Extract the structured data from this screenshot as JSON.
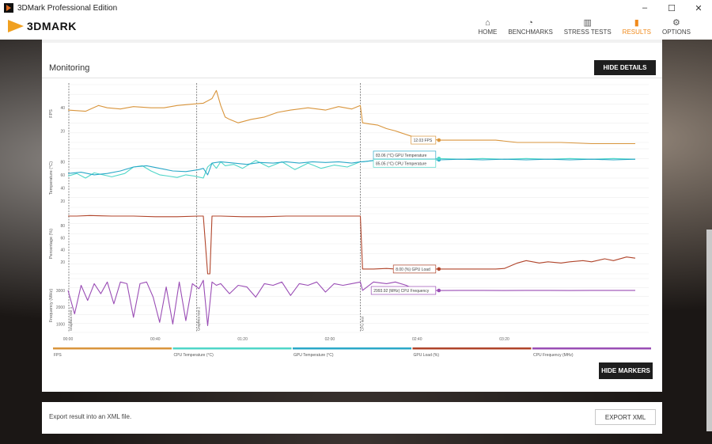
{
  "window": {
    "title": "3DMark Professional Edition",
    "controls": [
      "–",
      "☐",
      "✕"
    ]
  },
  "brand": {
    "logo_text": "3DMARK"
  },
  "nav": [
    {
      "label": "HOME",
      "icon": "home-icon",
      "glyph": "⌂"
    },
    {
      "label": "BENCHMARKS",
      "icon": "speedometer-icon",
      "glyph": "◔"
    },
    {
      "label": "STRESS TESTS",
      "icon": "bars-icon",
      "glyph": "▥"
    },
    {
      "label": "RESULTS",
      "icon": "results-icon",
      "glyph": "▮"
    },
    {
      "label": "OPTIONS",
      "icon": "gear-icon",
      "glyph": "⚙"
    }
  ],
  "monitoring": {
    "title": "Monitoring",
    "hide_details": "HIDE DETAILS",
    "hide_markers": "HIDE MARKERS"
  },
  "export": {
    "text": "Export result into an XML file.",
    "button": "EXPORT XML"
  },
  "colors": {
    "accent": "#f08a1c",
    "fps": "#d9953c",
    "cpu_temp": "#4fd6c8",
    "gpu_temp": "#2aa8c8",
    "gpu_load": "#b0442a",
    "cpu_freq": "#9a4db5"
  },
  "chart_data": {
    "type": "line",
    "x_ticks": [
      "00:00",
      "00:40",
      "01:20",
      "02:00",
      "02:40",
      "03:20"
    ],
    "markers": [
      "Graphics test 1",
      "Graphics test 2",
      "CPU test"
    ],
    "panels": [
      {
        "ylabel": "FPS",
        "yticks": [
          "40",
          "20"
        ],
        "ylim": [
          10,
          60
        ]
      },
      {
        "ylabel": "Temperature (°C)",
        "yticks": [
          "80",
          "60",
          "40",
          "20"
        ],
        "ylim": [
          10,
          100
        ]
      },
      {
        "ylabel": "Percentage (%)",
        "yticks": [
          "80",
          "60",
          "40",
          "20"
        ],
        "ylim": [
          0,
          100
        ]
      },
      {
        "ylabel": "Frequency (MHz)",
        "yticks": [
          "3000",
          "2000",
          "1000"
        ],
        "ylim": [
          500,
          3700
        ]
      }
    ],
    "tooltips": [
      {
        "text": "12.03 FPS",
        "panel": 0,
        "y": 12.03
      },
      {
        "text": "83.06 (°C) GPU Temperature",
        "panel": 1,
        "y": 83.06
      },
      {
        "text": "85.05 (°C) CPU Temperature",
        "panel": 1,
        "y": 85.05
      },
      {
        "text": "8.00 (%) GPU Load",
        "panel": 2,
        "y": 8
      },
      {
        "text": "2993.92 (MHz) CPU Frequency",
        "panel": 3,
        "y": 2993.92
      }
    ],
    "cursor_time": 170,
    "series": [
      {
        "name": "FPS",
        "panel": 0,
        "color": "#d9953c",
        "x": [
          0,
          8,
          14,
          18,
          24,
          30,
          38,
          44,
          50,
          56,
          62,
          66,
          68,
          70,
          72,
          74,
          78,
          84,
          90,
          96,
          102,
          110,
          118,
          124,
          130,
          134,
          135,
          138,
          142,
          146,
          150,
          158,
          166,
          170,
          176,
          184,
          196,
          206,
          218,
          226,
          240,
          250,
          260
        ],
        "y": [
          38,
          37,
          42,
          40,
          39,
          41,
          40,
          40,
          42,
          43,
          44,
          48,
          55,
          42,
          32,
          30,
          27,
          30,
          32,
          36,
          38,
          40,
          38,
          41,
          39,
          42,
          27,
          26,
          25,
          22,
          20,
          15,
          13,
          12,
          12,
          12,
          12,
          10,
          10,
          10,
          9,
          9,
          9
        ]
      },
      {
        "name": "CPU Temperature (°C)",
        "panel": 1,
        "color": "#4fd6c8",
        "x": [
          0,
          4,
          8,
          12,
          16,
          20,
          26,
          30,
          34,
          38,
          42,
          46,
          50,
          54,
          58,
          62,
          64,
          66,
          68,
          70,
          72,
          76,
          80,
          86,
          92,
          98,
          104,
          110,
          116,
          122,
          128,
          134,
          135,
          140,
          146,
          150,
          155,
          160,
          170,
          180,
          190,
          200,
          210,
          220,
          230,
          240,
          250,
          260
        ],
        "y": [
          58,
          62,
          55,
          63,
          60,
          57,
          62,
          72,
          74,
          66,
          60,
          58,
          56,
          60,
          58,
          55,
          72,
          78,
          70,
          80,
          74,
          76,
          70,
          82,
          72,
          80,
          68,
          78,
          70,
          75,
          72,
          80,
          80,
          82,
          84,
          81,
          83,
          84,
          85,
          84,
          85,
          84,
          85,
          84,
          85,
          84,
          85,
          84
        ]
      },
      {
        "name": "GPU Temperature (°C)",
        "panel": 1,
        "color": "#2aa8c8",
        "x": [
          0,
          6,
          12,
          18,
          24,
          30,
          36,
          42,
          48,
          54,
          60,
          62,
          64,
          66,
          70,
          76,
          82,
          88,
          94,
          100,
          106,
          112,
          118,
          124,
          130,
          134,
          135,
          140,
          146,
          152,
          160,
          170,
          180,
          190,
          200,
          210,
          220,
          230,
          240,
          250,
          260
        ],
        "y": [
          62,
          64,
          60,
          62,
          66,
          72,
          74,
          70,
          66,
          65,
          68,
          70,
          60,
          78,
          80,
          78,
          76,
          79,
          78,
          80,
          78,
          80,
          79,
          80,
          78,
          80,
          80,
          82,
          83,
          84,
          83,
          83,
          84,
          83,
          84,
          83,
          84,
          83,
          84,
          83,
          84
        ]
      },
      {
        "name": "GPU Load (%)",
        "panel": 2,
        "color": "#b0442a",
        "x": [
          0,
          2,
          4,
          10,
          20,
          30,
          40,
          50,
          60,
          62,
          64,
          65,
          66,
          68,
          70,
          80,
          90,
          100,
          110,
          120,
          130,
          134,
          135,
          140,
          146,
          150,
          160,
          170,
          180,
          190,
          196,
          200,
          206,
          210,
          216,
          220,
          226,
          230,
          236,
          240,
          246,
          250,
          256,
          260
        ],
        "y": [
          96,
          96,
          96,
          97,
          96,
          96,
          95,
          95,
          96,
          96,
          0,
          0,
          96,
          96,
          96,
          95,
          95,
          96,
          96,
          96,
          96,
          96,
          8,
          8,
          9,
          8,
          8,
          8,
          8,
          8,
          8,
          9,
          18,
          22,
          18,
          20,
          18,
          20,
          22,
          20,
          25,
          22,
          28,
          26
        ]
      },
      {
        "name": "CPU Frequency (MHz)",
        "panel": 3,
        "color": "#9a4db5",
        "x": [
          0,
          3,
          6,
          9,
          12,
          15,
          18,
          21,
          24,
          27,
          30,
          33,
          36,
          39,
          42,
          45,
          48,
          51,
          54,
          57,
          60,
          62,
          64,
          66,
          68,
          70,
          74,
          78,
          82,
          86,
          90,
          94,
          98,
          102,
          106,
          110,
          114,
          118,
          122,
          126,
          130,
          134,
          135,
          140,
          146,
          150,
          155,
          160,
          165,
          170,
          180,
          190,
          200,
          210,
          220,
          230,
          240,
          250,
          260
        ],
        "y": [
          3000,
          1600,
          3300,
          2400,
          3400,
          2800,
          3500,
          2200,
          3500,
          3400,
          1400,
          3400,
          3500,
          2600,
          1100,
          3200,
          1000,
          3500,
          1200,
          3400,
          3100,
          3600,
          900,
          3500,
          3300,
          3400,
          2800,
          3300,
          3200,
          2600,
          3400,
          3300,
          3500,
          2700,
          3400,
          3300,
          3500,
          2900,
          3400,
          3300,
          3400,
          3500,
          3000,
          3500,
          3400,
          3500,
          3300,
          3000,
          3000,
          2990,
          3000,
          3000,
          2990,
          3000,
          3000,
          2990,
          3000,
          3000,
          3000
        ]
      }
    ],
    "legend": [
      "FPS",
      "CPU Temperature (°C)",
      "GPU Temperature (°C)",
      "GPU Load (%)",
      "CPU Frequency (MHz)"
    ]
  }
}
